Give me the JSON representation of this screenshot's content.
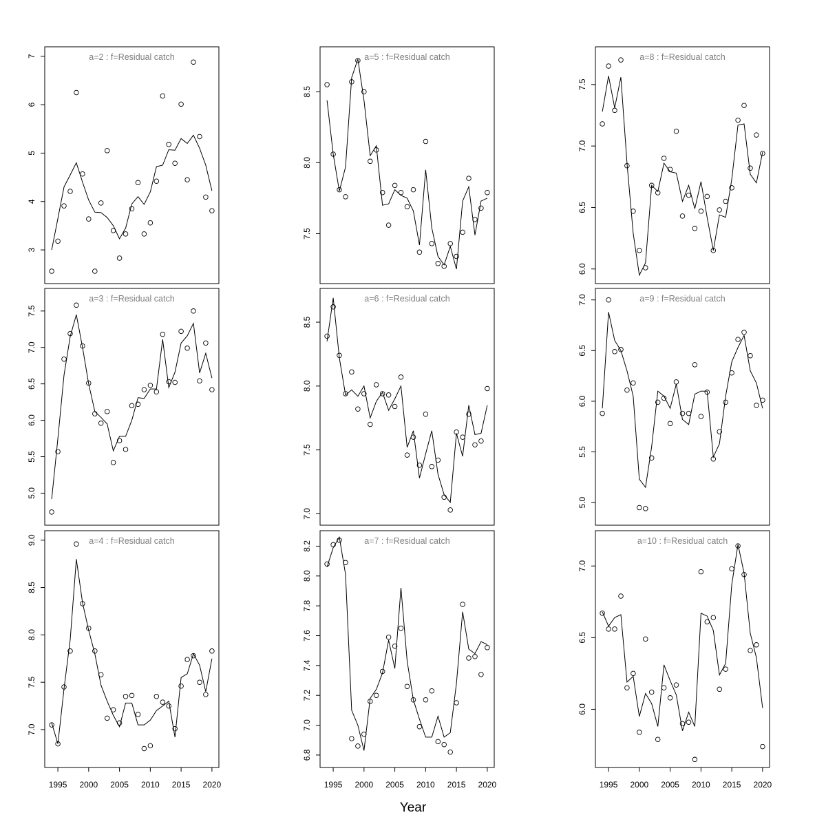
{
  "figure": {
    "xlabel": "Year"
  },
  "chart_data": [
    {
      "type": "line",
      "title": "a=2  :  f=Residual catch",
      "ylim": [
        2.5,
        7.0
      ],
      "yticks": [
        3,
        4,
        5,
        6,
        7
      ],
      "x": [
        1994,
        1995,
        1996,
        1997,
        1998,
        1999,
        2000,
        2001,
        2002,
        2003,
        2004,
        2005,
        2006,
        2007,
        2008,
        2009,
        2010,
        2011,
        2012,
        2013,
        2014,
        2015,
        2016,
        2017,
        2018,
        2019,
        2020
      ],
      "observed": [
        2.56,
        3.18,
        3.91,
        4.21,
        6.25,
        4.57,
        3.64,
        2.56,
        3.97,
        5.05,
        3.4,
        2.83,
        3.33,
        3.85,
        4.39,
        3.33,
        3.56,
        4.42,
        6.18,
        5.18,
        4.79,
        6.01,
        4.45,
        6.88,
        5.34,
        4.09,
        3.81
      ],
      "fitted": [
        3.0,
        3.65,
        4.3,
        4.55,
        4.8,
        4.4,
        4.03,
        3.78,
        3.77,
        3.67,
        3.5,
        3.23,
        3.45,
        3.95,
        4.1,
        3.94,
        4.2,
        4.72,
        4.75,
        5.07,
        5.06,
        5.3,
        5.2,
        5.37,
        5.1,
        4.75,
        4.22
      ]
    },
    {
      "type": "line",
      "title": "a=5  :  f=Residual catch",
      "ylim": [
        7.215,
        8.75
      ],
      "yticks": [
        7.5,
        8.0,
        8.5
      ],
      "x": [
        1994,
        1995,
        1996,
        1997,
        1998,
        1999,
        2000,
        2001,
        2002,
        2003,
        2004,
        2005,
        2006,
        2007,
        2008,
        2009,
        2010,
        2011,
        2012,
        2013,
        2014,
        2015,
        2016,
        2017,
        2018,
        2019,
        2020
      ],
      "observed": [
        8.55,
        8.06,
        7.81,
        7.76,
        8.57,
        8.72,
        8.5,
        8.01,
        8.09,
        7.79,
        7.56,
        7.84,
        7.79,
        7.69,
        7.81,
        7.37,
        8.15,
        7.43,
        7.29,
        7.27,
        7.43,
        7.34,
        7.51,
        7.89,
        7.6,
        7.68,
        7.79
      ],
      "fitted": [
        8.44,
        8.06,
        7.8,
        7.97,
        8.6,
        8.73,
        8.44,
        8.05,
        8.12,
        7.7,
        7.71,
        7.81,
        7.77,
        7.75,
        7.66,
        7.42,
        7.95,
        7.54,
        7.34,
        7.28,
        7.41,
        7.25,
        7.73,
        7.83,
        7.49,
        7.73,
        7.75
      ]
    },
    {
      "type": "line",
      "title": "a=8  :  f=Residual catch",
      "ylim": [
        5.958,
        7.73
      ],
      "yticks": [
        6.0,
        6.5,
        7.0,
        7.5
      ],
      "x": [
        1994,
        1995,
        1996,
        1997,
        1998,
        1999,
        2000,
        2001,
        2002,
        2003,
        2004,
        2005,
        2006,
        2007,
        2008,
        2009,
        2010,
        2011,
        2012,
        2013,
        2014,
        2015,
        2016,
        2017,
        2018,
        2019,
        2020
      ],
      "observed": [
        7.18,
        7.65,
        7.29,
        7.7,
        6.84,
        6.47,
        6.15,
        6.01,
        6.68,
        6.62,
        6.9,
        6.81,
        7.12,
        6.43,
        6.6,
        6.33,
        6.47,
        6.59,
        6.15,
        6.48,
        6.55,
        6.66,
        7.21,
        7.33,
        6.82,
        7.09,
        6.94
      ],
      "fitted": [
        7.28,
        7.57,
        7.31,
        7.56,
        6.86,
        6.29,
        5.95,
        6.05,
        6.68,
        6.63,
        6.86,
        6.79,
        6.78,
        6.55,
        6.68,
        6.49,
        6.71,
        6.42,
        6.15,
        6.44,
        6.42,
        6.73,
        7.17,
        7.18,
        6.77,
        6.7,
        6.95
      ]
    },
    {
      "type": "line",
      "title": "a=3  :  f=Residual catch",
      "ylim": [
        4.69,
        7.68
      ],
      "yticks": [
        5.0,
        5.5,
        6.0,
        6.5,
        7.0,
        7.5
      ],
      "x": [
        1994,
        1995,
        1996,
        1997,
        1998,
        1999,
        2000,
        2001,
        2002,
        2003,
        2004,
        2005,
        2006,
        2007,
        2008,
        2009,
        2010,
        2011,
        2012,
        2013,
        2014,
        2015,
        2016,
        2017,
        2018,
        2019,
        2020
      ],
      "observed": [
        4.74,
        5.57,
        6.84,
        7.19,
        7.58,
        7.02,
        6.51,
        6.09,
        5.96,
        6.12,
        5.42,
        5.72,
        5.6,
        6.2,
        6.22,
        6.42,
        6.48,
        6.39,
        7.18,
        6.53,
        6.52,
        7.22,
        6.99,
        7.5,
        6.54,
        7.06,
        6.42
      ],
      "fitted": [
        4.92,
        5.75,
        6.62,
        7.15,
        7.45,
        7.0,
        6.5,
        6.12,
        6.04,
        5.95,
        5.58,
        5.78,
        5.78,
        6.0,
        6.31,
        6.3,
        6.43,
        6.43,
        7.11,
        6.45,
        6.66,
        7.06,
        7.16,
        7.33,
        6.65,
        6.92,
        6.58
      ]
    },
    {
      "type": "line",
      "title": "a=6  :  f=Residual catch",
      "ylim": [
        6.985,
        8.69
      ],
      "yticks": [
        7.0,
        7.5,
        8.0,
        8.5
      ],
      "x": [
        1994,
        1995,
        1996,
        1997,
        1998,
        1999,
        2000,
        2001,
        2002,
        2003,
        2004,
        2005,
        2006,
        2007,
        2008,
        2009,
        2010,
        2011,
        2012,
        2013,
        2014,
        2015,
        2016,
        2017,
        2018,
        2019,
        2020
      ],
      "observed": [
        8.39,
        8.62,
        8.24,
        7.94,
        8.11,
        7.82,
        7.94,
        7.7,
        8.01,
        7.94,
        7.93,
        7.84,
        8.07,
        7.46,
        7.6,
        7.38,
        7.78,
        7.37,
        7.42,
        7.13,
        7.03,
        7.64,
        7.6,
        7.78,
        7.54,
        7.57,
        7.98
      ],
      "fitted": [
        8.35,
        8.69,
        8.22,
        7.93,
        7.97,
        7.92,
        8.0,
        7.75,
        7.88,
        7.95,
        7.81,
        7.9,
        8.0,
        7.52,
        7.65,
        7.28,
        7.47,
        7.65,
        7.31,
        7.15,
        7.09,
        7.63,
        7.45,
        7.85,
        7.62,
        7.63,
        7.85
      ]
    },
    {
      "type": "line",
      "title": "a=9  :  f=Residual catch",
      "ylim": [
        4.87,
        7.02
      ],
      "yticks": [
        5.0,
        5.5,
        6.0,
        6.5,
        7.0
      ],
      "x": [
        1994,
        1995,
        1996,
        1997,
        1998,
        1999,
        2000,
        2001,
        2002,
        2003,
        2004,
        2005,
        2006,
        2007,
        2008,
        2009,
        2010,
        2011,
        2012,
        2013,
        2014,
        2015,
        2016,
        2017,
        2018,
        2019,
        2020
      ],
      "observed": [
        5.88,
        7.0,
        6.49,
        6.51,
        6.11,
        6.18,
        4.95,
        4.94,
        5.44,
        5.99,
        6.03,
        5.78,
        6.19,
        5.88,
        5.88,
        6.36,
        5.85,
        6.09,
        5.43,
        5.7,
        5.99,
        6.28,
        6.61,
        6.68,
        6.45,
        5.96,
        6.01
      ],
      "fitted": [
        5.93,
        6.88,
        6.6,
        6.5,
        6.3,
        6.05,
        5.23,
        5.15,
        5.55,
        6.1,
        6.05,
        5.93,
        6.17,
        5.82,
        5.77,
        6.07,
        6.1,
        6.1,
        5.45,
        5.58,
        6.05,
        6.39,
        6.53,
        6.65,
        6.3,
        6.18,
        5.93
      ]
    },
    {
      "type": "line",
      "title": "a=4  :  f=Residual catch",
      "ylim": [
        6.7,
        9.0
      ],
      "yticks": [
        7.0,
        7.5,
        8.0,
        8.5,
        9.0
      ],
      "x": [
        1994,
        1995,
        1996,
        1997,
        1998,
        1999,
        2000,
        2001,
        2002,
        2003,
        2004,
        2005,
        2006,
        2007,
        2008,
        2009,
        2010,
        2011,
        2012,
        2013,
        2014,
        2015,
        2016,
        2017,
        2018,
        2019,
        2020
      ],
      "observed": [
        7.05,
        6.85,
        7.45,
        7.83,
        8.96,
        8.33,
        8.07,
        7.83,
        7.58,
        7.12,
        7.21,
        7.07,
        7.35,
        7.36,
        7.16,
        6.8,
        6.83,
        7.35,
        7.29,
        7.25,
        7.01,
        7.46,
        7.74,
        7.78,
        7.5,
        7.37,
        7.83
      ],
      "fitted": [
        7.07,
        6.85,
        7.43,
        7.95,
        8.8,
        8.34,
        8.05,
        7.8,
        7.47,
        7.3,
        7.15,
        7.03,
        7.28,
        7.28,
        7.05,
        7.05,
        7.1,
        7.2,
        7.25,
        7.3,
        6.92,
        7.55,
        7.59,
        7.8,
        7.68,
        7.4,
        7.75
      ]
    },
    {
      "type": "line",
      "title": "a=7  :  f=Residual catch",
      "ylim": [
        6.78,
        8.24
      ],
      "yticks": [
        6.8,
        7.0,
        7.2,
        7.4,
        7.6,
        7.8,
        8.0,
        8.2
      ],
      "x": [
        1994,
        1995,
        1996,
        1997,
        1998,
        1999,
        2000,
        2001,
        2002,
        2003,
        2004,
        2005,
        2006,
        2007,
        2008,
        2009,
        2010,
        2011,
        2012,
        2013,
        2014,
        2015,
        2016,
        2017,
        2018,
        2019,
        2020
      ],
      "observed": [
        8.08,
        8.21,
        8.24,
        8.09,
        6.91,
        6.86,
        6.94,
        7.16,
        7.2,
        7.36,
        7.59,
        7.53,
        7.65,
        7.26,
        7.17,
        6.99,
        7.17,
        7.23,
        6.89,
        6.87,
        6.82,
        7.15,
        7.81,
        7.45,
        7.46,
        7.34,
        7.52
      ],
      "fitted": [
        8.06,
        8.19,
        8.26,
        8.01,
        7.1,
        7.0,
        6.83,
        7.18,
        7.24,
        7.35,
        7.57,
        7.38,
        7.92,
        7.43,
        7.17,
        7.04,
        6.92,
        6.92,
        7.06,
        6.92,
        6.95,
        7.28,
        7.76,
        7.51,
        7.48,
        7.56,
        7.54
      ]
    },
    {
      "type": "line",
      "title": "a=10  :  f=Residual catch",
      "ylim": [
        5.66,
        7.18
      ],
      "yticks": [
        6.0,
        6.5,
        7.0
      ],
      "x": [
        1994,
        1995,
        1996,
        1997,
        1998,
        1999,
        2000,
        2001,
        2002,
        2003,
        2004,
        2005,
        2006,
        2007,
        2008,
        2009,
        2010,
        2011,
        2012,
        2013,
        2014,
        2015,
        2016,
        2017,
        2018,
        2019,
        2020
      ],
      "observed": [
        6.67,
        6.56,
        6.56,
        6.79,
        6.15,
        6.25,
        5.84,
        6.49,
        6.12,
        5.79,
        6.15,
        6.08,
        6.17,
        5.9,
        5.91,
        5.65,
        6.96,
        6.61,
        6.64,
        6.14,
        6.28,
        6.98,
        7.14,
        6.94,
        6.41,
        6.45,
        5.74
      ],
      "fitted": [
        6.68,
        6.58,
        6.64,
        6.66,
        6.19,
        6.23,
        5.95,
        6.11,
        6.04,
        5.88,
        6.31,
        6.2,
        6.1,
        5.85,
        5.98,
        5.88,
        6.67,
        6.65,
        6.55,
        6.24,
        6.32,
        6.87,
        7.15,
        6.95,
        6.53,
        6.36,
        6.01
      ]
    }
  ]
}
